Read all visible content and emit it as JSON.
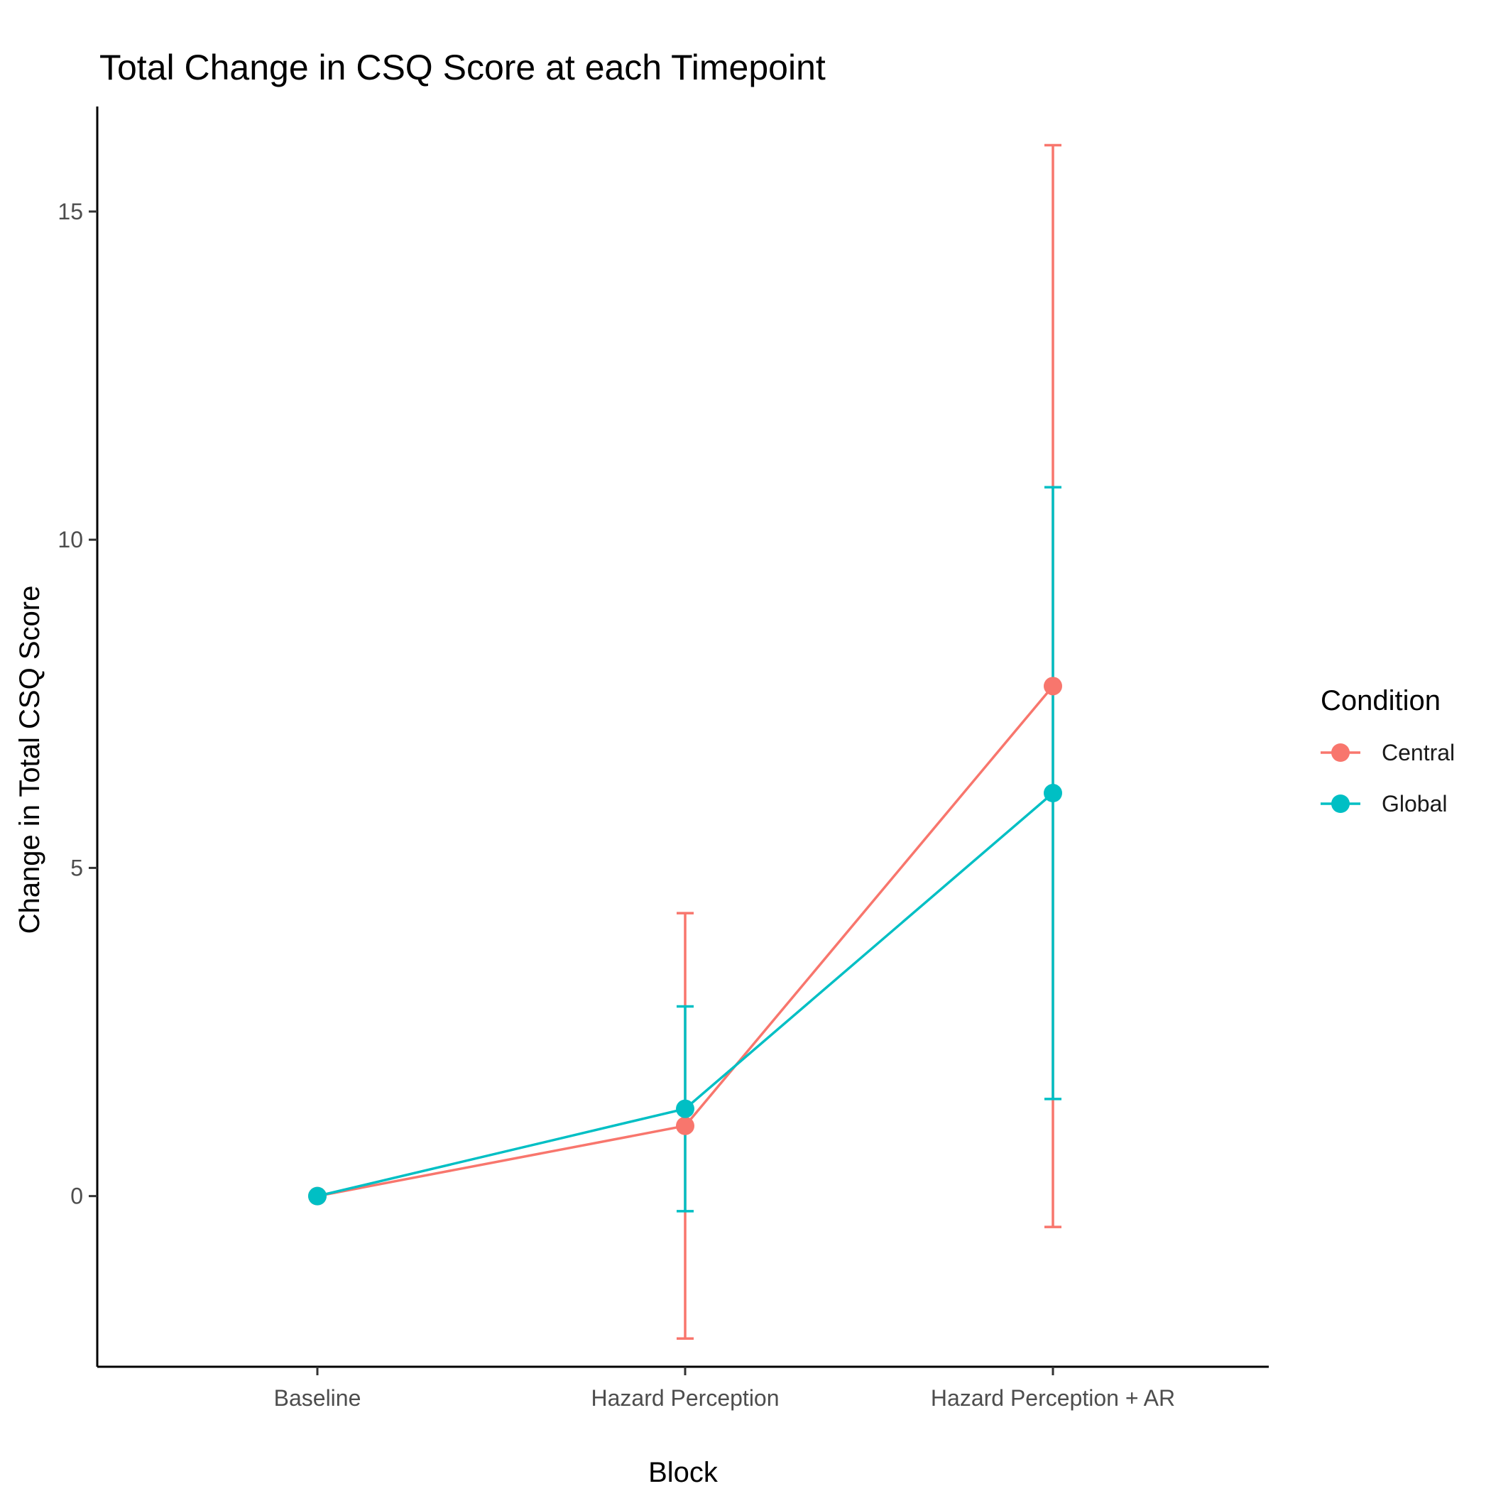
{
  "chart_data": {
    "type": "line",
    "title": "Total Change in CSQ Score at each Timepoint",
    "xlabel": "Block",
    "ylabel": "Change in Total CSQ Score",
    "categories": [
      "Baseline",
      "Hazard Perception",
      "Hazard Perception + AR"
    ],
    "ylim": [
      -2.6,
      16.6
    ],
    "yticks": [
      0,
      5,
      10,
      15
    ],
    "grid": false,
    "legend": {
      "title": "Condition",
      "placement": "right"
    },
    "series": [
      {
        "name": "Central",
        "color": "#F8766D",
        "values": [
          0,
          1.07,
          7.77
        ],
        "error_lower": [
          null,
          -2.17,
          -0.47
        ],
        "error_upper": [
          null,
          4.31,
          16.01
        ]
      },
      {
        "name": "Global",
        "color": "#00BFC4",
        "values": [
          0,
          1.33,
          6.14
        ],
        "error_lower": [
          null,
          -0.23,
          1.48
        ],
        "error_upper": [
          null,
          2.89,
          10.8
        ]
      }
    ]
  }
}
